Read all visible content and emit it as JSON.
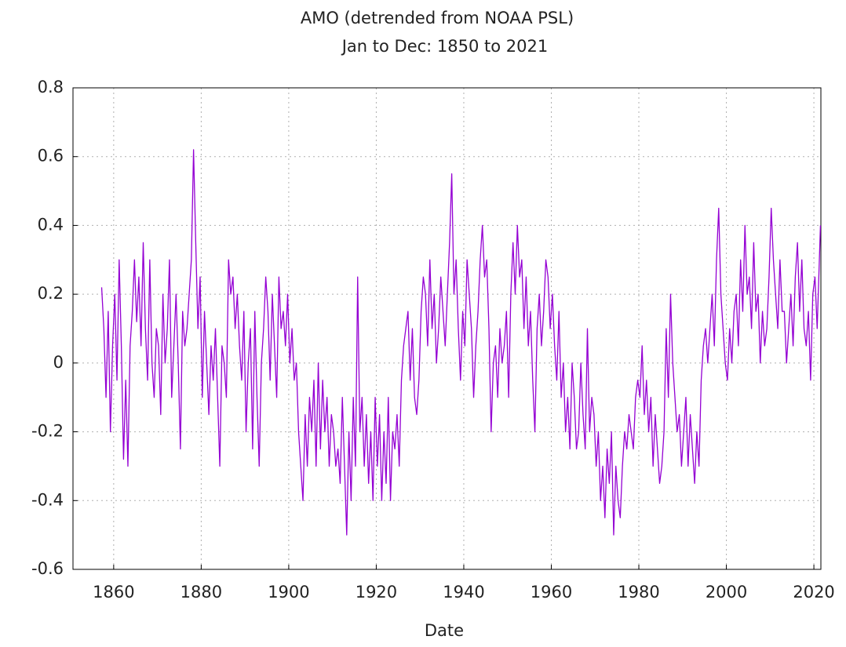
{
  "chart_data": {
    "type": "line",
    "title": "AMO (detrended from NOAA PSL)",
    "subtitle": "Jan to Dec: 1850 to 2021",
    "xlabel": "Date",
    "grid": true,
    "xlim": [
      1850.7,
      2021.6
    ],
    "xticks": [
      1860,
      1880,
      1900,
      1920,
      1940,
      1960,
      1980,
      2000,
      2020
    ],
    "ylim": [
      -0.6,
      0.8
    ],
    "yticks": [
      -0.6,
      -0.4,
      -0.2,
      0,
      0.2,
      0.4,
      0.6,
      0.8
    ],
    "x": [
      1857.25,
      1857.75,
      1858.25,
      1858.75,
      1859.25,
      1859.75,
      1860.25,
      1860.75,
      1861.25,
      1861.75,
      1862.25,
      1862.75,
      1863.25,
      1863.75,
      1864.25,
      1864.75,
      1865.25,
      1865.75,
      1866.25,
      1866.75,
      1867.25,
      1867.75,
      1868.25,
      1868.75,
      1869.25,
      1869.75,
      1870.25,
      1870.75,
      1871.25,
      1871.75,
      1872.25,
      1872.75,
      1873.25,
      1873.75,
      1874.25,
      1874.75,
      1875.25,
      1875.75,
      1876.25,
      1876.75,
      1877.25,
      1877.75,
      1878.25,
      1878.75,
      1879.25,
      1879.75,
      1880.25,
      1880.75,
      1881.25,
      1881.75,
      1882.25,
      1882.75,
      1883.25,
      1883.75,
      1884.25,
      1884.75,
      1885.25,
      1885.75,
      1886.25,
      1886.75,
      1887.25,
      1887.75,
      1888.25,
      1888.75,
      1889.25,
      1889.75,
      1890.25,
      1890.75,
      1891.25,
      1891.75,
      1892.25,
      1892.75,
      1893.25,
      1893.75,
      1894.25,
      1894.75,
      1895.25,
      1895.75,
      1896.25,
      1896.75,
      1897.25,
      1897.75,
      1898.25,
      1898.75,
      1899.25,
      1899.75,
      1900.25,
      1900.75,
      1901.25,
      1901.75,
      1902.25,
      1902.75,
      1903.25,
      1903.75,
      1904.25,
      1904.75,
      1905.25,
      1905.75,
      1906.25,
      1906.75,
      1907.25,
      1907.75,
      1908.25,
      1908.75,
      1909.25,
      1909.75,
      1910.25,
      1910.75,
      1911.25,
      1911.75,
      1912.25,
      1912.75,
      1913.25,
      1913.75,
      1914.25,
      1914.75,
      1915.25,
      1915.75,
      1916.25,
      1916.75,
      1917.25,
      1917.75,
      1918.25,
      1918.75,
      1919.25,
      1919.75,
      1920.25,
      1920.75,
      1921.25,
      1921.75,
      1922.25,
      1922.75,
      1923.25,
      1923.75,
      1924.25,
      1924.75,
      1925.25,
      1925.75,
      1926.25,
      1926.75,
      1927.25,
      1927.75,
      1928.25,
      1928.75,
      1929.25,
      1929.75,
      1930.25,
      1930.75,
      1931.25,
      1931.75,
      1932.25,
      1932.75,
      1933.25,
      1933.75,
      1934.25,
      1934.75,
      1935.25,
      1935.75,
      1936.25,
      1936.75,
      1937.25,
      1937.75,
      1938.25,
      1938.75,
      1939.25,
      1939.75,
      1940.25,
      1940.75,
      1941.25,
      1941.75,
      1942.25,
      1942.75,
      1943.25,
      1943.75,
      1944.25,
      1944.75,
      1945.25,
      1945.75,
      1946.25,
      1946.75,
      1947.25,
      1947.75,
      1948.25,
      1948.75,
      1949.25,
      1949.75,
      1950.25,
      1950.75,
      1951.25,
      1951.75,
      1952.25,
      1952.75,
      1953.25,
      1953.75,
      1954.25,
      1954.75,
      1955.25,
      1955.75,
      1956.25,
      1956.75,
      1957.25,
      1957.75,
      1958.25,
      1958.75,
      1959.25,
      1959.75,
      1960.25,
      1960.75,
      1961.25,
      1961.75,
      1962.25,
      1962.75,
      1963.25,
      1963.75,
      1964.25,
      1964.75,
      1965.25,
      1965.75,
      1966.25,
      1966.75,
      1967.25,
      1967.75,
      1968.25,
      1968.75,
      1969.25,
      1969.75,
      1970.25,
      1970.75,
      1971.25,
      1971.75,
      1972.25,
      1972.75,
      1973.25,
      1973.75,
      1974.25,
      1974.75,
      1975.25,
      1975.75,
      1976.25,
      1976.75,
      1977.25,
      1977.75,
      1978.25,
      1978.75,
      1979.25,
      1979.75,
      1980.25,
      1980.75,
      1981.25,
      1981.75,
      1982.25,
      1982.75,
      1983.25,
      1983.75,
      1984.25,
      1984.75,
      1985.25,
      1985.75,
      1986.25,
      1986.75,
      1987.25,
      1987.75,
      1988.25,
      1988.75,
      1989.25,
      1989.75,
      1990.25,
      1990.75,
      1991.25,
      1991.75,
      1992.25,
      1992.75,
      1993.25,
      1993.75,
      1994.25,
      1994.75,
      1995.25,
      1995.75,
      1996.25,
      1996.75,
      1997.25,
      1997.75,
      1998.25,
      1998.75,
      1999.25,
      1999.75,
      2000.25,
      2000.75,
      2001.25,
      2001.75,
      2002.25,
      2002.75,
      2003.25,
      2003.75,
      2004.25,
      2004.75,
      2005.25,
      2005.75,
      2006.25,
      2006.75,
      2007.25,
      2007.75,
      2008.25,
      2008.75,
      2009.25,
      2009.75,
      2010.25,
      2010.75,
      2011.25,
      2011.75,
      2012.25,
      2012.75,
      2013.25,
      2013.75,
      2014.25,
      2014.75,
      2015.25,
      2015.75,
      2016.25,
      2016.75,
      2017.25,
      2017.75,
      2018.25,
      2018.75,
      2019.25,
      2019.75,
      2020.25,
      2020.75,
      2021.25,
      2021.5
    ],
    "series": [
      {
        "color": "#9400d3",
        "values": [
          0.22,
          0.1,
          -0.1,
          0.15,
          -0.2,
          0.05,
          0.2,
          -0.05,
          0.3,
          0.05,
          -0.28,
          -0.05,
          -0.3,
          0.05,
          0.15,
          0.3,
          0.12,
          0.25,
          0.05,
          0.35,
          0.1,
          -0.05,
          0.3,
          0.0,
          -0.1,
          0.1,
          0.05,
          -0.15,
          0.2,
          0.0,
          0.1,
          0.3,
          -0.1,
          0.05,
          0.2,
          0.0,
          -0.25,
          0.15,
          0.05,
          0.1,
          0.2,
          0.3,
          0.62,
          0.35,
          0.1,
          0.25,
          -0.1,
          0.15,
          0.0,
          -0.15,
          0.05,
          -0.05,
          0.1,
          -0.1,
          -0.3,
          0.05,
          0.0,
          -0.1,
          0.3,
          0.2,
          0.25,
          0.1,
          0.2,
          0.05,
          -0.05,
          0.15,
          -0.2,
          0.0,
          0.1,
          -0.25,
          0.15,
          -0.1,
          -0.3,
          0.0,
          0.1,
          0.25,
          0.15,
          -0.05,
          0.2,
          0.05,
          -0.1,
          0.25,
          0.1,
          0.15,
          0.05,
          0.2,
          0.0,
          0.1,
          -0.05,
          0.0,
          -0.2,
          -0.3,
          -0.4,
          -0.15,
          -0.3,
          -0.1,
          -0.2,
          -0.05,
          -0.3,
          0.0,
          -0.25,
          -0.05,
          -0.2,
          -0.1,
          -0.3,
          -0.15,
          -0.2,
          -0.3,
          -0.25,
          -0.35,
          -0.1,
          -0.3,
          -0.5,
          -0.2,
          -0.4,
          -0.1,
          -0.3,
          0.25,
          -0.2,
          -0.1,
          -0.3,
          -0.15,
          -0.35,
          -0.2,
          -0.4,
          -0.1,
          -0.3,
          -0.15,
          -0.4,
          -0.2,
          -0.35,
          -0.1,
          -0.4,
          -0.2,
          -0.25,
          -0.15,
          -0.3,
          -0.05,
          0.05,
          0.1,
          0.15,
          -0.05,
          0.1,
          -0.1,
          -0.15,
          -0.05,
          0.15,
          0.25,
          0.2,
          0.05,
          0.3,
          0.1,
          0.2,
          0.0,
          0.1,
          0.25,
          0.15,
          0.05,
          0.2,
          0.35,
          0.55,
          0.2,
          0.3,
          0.1,
          -0.05,
          0.15,
          0.05,
          0.3,
          0.2,
          0.1,
          -0.1,
          0.05,
          0.15,
          0.3,
          0.4,
          0.25,
          0.3,
          0.1,
          -0.2,
          0.0,
          0.05,
          -0.1,
          0.1,
          0.0,
          0.05,
          0.15,
          -0.1,
          0.2,
          0.35,
          0.2,
          0.4,
          0.25,
          0.3,
          0.1,
          0.25,
          0.05,
          0.15,
          -0.05,
          -0.2,
          0.1,
          0.2,
          0.05,
          0.15,
          0.3,
          0.25,
          0.1,
          0.2,
          0.05,
          -0.05,
          0.15,
          -0.1,
          0.0,
          -0.2,
          -0.1,
          -0.25,
          0.0,
          -0.1,
          -0.25,
          -0.2,
          0.0,
          -0.15,
          -0.25,
          0.1,
          -0.2,
          -0.1,
          -0.15,
          -0.3,
          -0.2,
          -0.4,
          -0.3,
          -0.45,
          -0.25,
          -0.35,
          -0.2,
          -0.5,
          -0.3,
          -0.4,
          -0.45,
          -0.3,
          -0.2,
          -0.25,
          -0.15,
          -0.2,
          -0.25,
          -0.1,
          -0.05,
          -0.1,
          0.05,
          -0.15,
          -0.05,
          -0.2,
          -0.1,
          -0.3,
          -0.15,
          -0.25,
          -0.35,
          -0.3,
          -0.2,
          0.1,
          -0.1,
          0.2,
          0.0,
          -0.1,
          -0.2,
          -0.15,
          -0.3,
          -0.2,
          -0.1,
          -0.3,
          -0.15,
          -0.25,
          -0.35,
          -0.2,
          -0.3,
          -0.05,
          0.05,
          0.1,
          0.0,
          0.1,
          0.2,
          0.05,
          0.3,
          0.45,
          0.2,
          0.1,
          0.0,
          -0.05,
          0.1,
          0.0,
          0.15,
          0.2,
          0.05,
          0.3,
          0.15,
          0.4,
          0.2,
          0.25,
          0.1,
          0.35,
          0.15,
          0.2,
          0.0,
          0.15,
          0.05,
          0.1,
          0.25,
          0.45,
          0.3,
          0.2,
          0.1,
          0.3,
          0.15,
          0.15,
          0.0,
          0.1,
          0.2,
          0.05,
          0.25,
          0.35,
          0.15,
          0.3,
          0.1,
          0.05,
          0.15,
          -0.05,
          0.2,
          0.25,
          0.1,
          0.3,
          0.4
        ]
      }
    ]
  }
}
